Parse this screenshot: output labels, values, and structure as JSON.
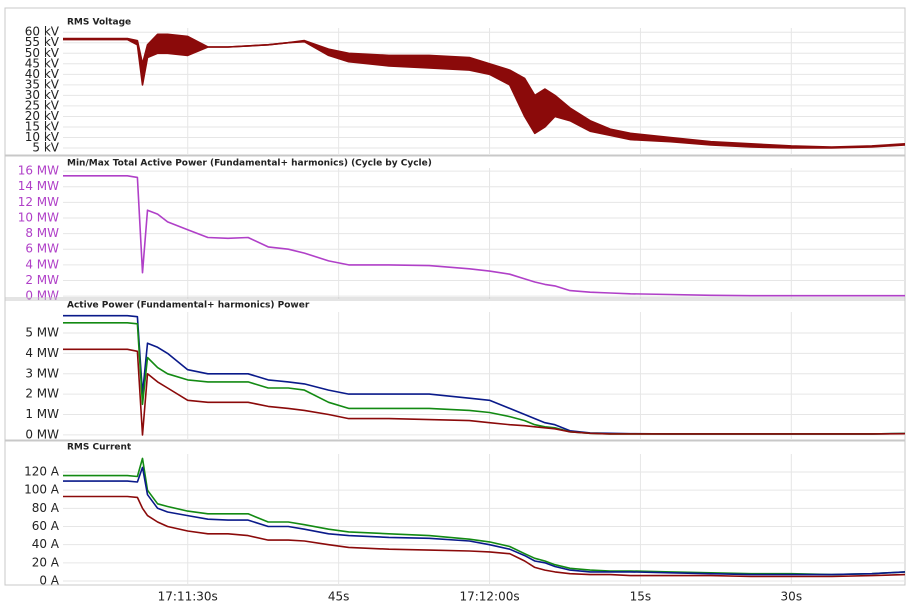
{
  "chart_data": [
    {
      "type": "line",
      "title": "RMS Voltage",
      "x": [
        17.6,
        20,
        24,
        25,
        25.5,
        26,
        27,
        28,
        30,
        32,
        34,
        36,
        38,
        40,
        41.6,
        44,
        46,
        50,
        54,
        58,
        60,
        62,
        63.5,
        64.5,
        65.5,
        66.5,
        68,
        70,
        72,
        74,
        78,
        82,
        86,
        90,
        94,
        98,
        101.3
      ],
      "xlim": [
        17.6,
        101.3
      ],
      "ylim": [
        1.7,
        62
      ],
      "tick_color": "#222222",
      "yticks": [
        {
          "value": 5,
          "label": "5 kV"
        },
        {
          "value": 10,
          "label": "10 kV"
        },
        {
          "value": 15,
          "label": "15 kV"
        },
        {
          "value": 20,
          "label": "20 kV"
        },
        {
          "value": 25,
          "label": "25 kV"
        },
        {
          "value": 30,
          "label": "30 kV"
        },
        {
          "value": 35,
          "label": "35 kV"
        },
        {
          "value": 40,
          "label": "40 kV"
        },
        {
          "value": 45,
          "label": "45 kV"
        },
        {
          "value": 50,
          "label": "50 kV"
        },
        {
          "value": 55,
          "label": "55 kV"
        },
        {
          "value": 60,
          "label": "60 kV"
        }
      ],
      "series": [
        {
          "color": "#8b0a0a",
          "values": [
            57,
            57,
            57,
            56,
            45,
            54,
            59,
            59,
            58,
            53,
            53,
            53.5,
            54,
            55,
            56,
            52,
            50,
            49,
            49,
            48,
            45,
            42,
            38,
            30,
            33,
            30,
            24,
            18,
            14,
            12,
            10,
            8,
            7,
            6,
            5.5,
            6,
            7
          ],
          "low": [
            56.5,
            56.5,
            56.5,
            54,
            35,
            48,
            50,
            50,
            49,
            53,
            53,
            53.5,
            54,
            55,
            55.5,
            49,
            46,
            44,
            43,
            42,
            40,
            35,
            20,
            12,
            15,
            20,
            18,
            13,
            11,
            9,
            8,
            6.5,
            5.5,
            5,
            5,
            5.5,
            6.5
          ]
        }
      ]
    },
    {
      "type": "line",
      "title": "Min/Max Total Active Power  (Fundamental+ harmonics) (Cycle by Cycle)",
      "x": [
        17.6,
        20,
        24,
        25,
        25.5,
        26,
        27,
        28,
        30,
        32,
        34,
        36,
        38,
        40,
        41.6,
        44,
        46,
        50,
        54,
        58,
        60,
        62,
        63.5,
        64.5,
        65.5,
        66.5,
        68,
        70,
        72,
        74,
        78,
        82,
        86,
        90,
        94,
        98,
        101.3
      ],
      "xlim": [
        17.6,
        101.3
      ],
      "ylim": [
        -0.5,
        16.4
      ],
      "tick_color": "#b040c8",
      "yticks": [
        {
          "value": 0,
          "label": "0 MW"
        },
        {
          "value": 2,
          "label": "2 MW"
        },
        {
          "value": 4,
          "label": "4 MW"
        },
        {
          "value": 6,
          "label": "6 MW"
        },
        {
          "value": 8,
          "label": "8 MW"
        },
        {
          "value": 10,
          "label": "10 MW"
        },
        {
          "value": 12,
          "label": "12 MW"
        },
        {
          "value": 14,
          "label": "14 MW"
        },
        {
          "value": 16,
          "label": "16 MW"
        }
      ],
      "series": [
        {
          "color": "#b040c8",
          "values": [
            15.4,
            15.4,
            15.4,
            15.2,
            3,
            11,
            10.5,
            9.5,
            8.5,
            7.5,
            7.4,
            7.5,
            6.3,
            6,
            5.5,
            4.5,
            4,
            4,
            3.9,
            3.5,
            3.2,
            2.8,
            2.2,
            1.8,
            1.5,
            1.3,
            0.7,
            0.5,
            0.4,
            0.3,
            0.2,
            0.1,
            0.05,
            0.05,
            0.05,
            0.05,
            0.05
          ]
        }
      ]
    },
    {
      "type": "line",
      "title": "Active Power  (Fundamental+ harmonics) Power",
      "x": [
        17.6,
        20,
        24,
        25,
        25.5,
        26,
        27,
        28,
        30,
        32,
        34,
        36,
        38,
        40,
        41.6,
        44,
        46,
        50,
        54,
        58,
        60,
        62,
        63.5,
        64.5,
        65.5,
        66.5,
        68,
        70,
        72,
        74,
        78,
        82,
        86,
        90,
        94,
        98,
        101.3
      ],
      "xlim": [
        17.6,
        101.3
      ],
      "ylim": [
        -0.25,
        6.03
      ],
      "tick_color": "#222222",
      "yticks": [
        {
          "value": 0,
          "label": "0 MW"
        },
        {
          "value": 1,
          "label": "1 MW"
        },
        {
          "value": 2,
          "label": "2 MW"
        },
        {
          "value": 3,
          "label": "3 MW"
        },
        {
          "value": 4,
          "label": "4 MW"
        },
        {
          "value": 5,
          "label": "5 MW"
        }
      ],
      "series": [
        {
          "color": "#0a1a8a",
          "values": [
            5.85,
            5.85,
            5.85,
            5.8,
            2,
            4.5,
            4.3,
            4,
            3.2,
            3.0,
            3.0,
            3.0,
            2.7,
            2.6,
            2.5,
            2.2,
            2.0,
            2.0,
            2.0,
            1.8,
            1.7,
            1.3,
            1.0,
            0.8,
            0.6,
            0.5,
            0.2,
            0.1,
            0.08,
            0.06,
            0.05,
            0.05,
            0.05,
            0.05,
            0.05,
            0.05,
            0.07
          ]
        },
        {
          "color": "#138a13",
          "values": [
            5.5,
            5.5,
            5.5,
            5.45,
            1.5,
            3.8,
            3.3,
            3.0,
            2.7,
            2.6,
            2.6,
            2.6,
            2.3,
            2.3,
            2.2,
            1.6,
            1.3,
            1.3,
            1.3,
            1.2,
            1.1,
            0.9,
            0.7,
            0.5,
            0.4,
            0.35,
            0.15,
            0.08,
            0.05,
            0.05,
            0.05,
            0.05,
            0.05,
            0.05,
            0.05,
            0.05,
            0.07
          ]
        },
        {
          "color": "#8b0a0a",
          "values": [
            4.2,
            4.2,
            4.2,
            4.1,
            0,
            3.0,
            2.6,
            2.3,
            1.7,
            1.6,
            1.6,
            1.6,
            1.4,
            1.3,
            1.2,
            1.0,
            0.8,
            0.8,
            0.75,
            0.7,
            0.6,
            0.5,
            0.45,
            0.4,
            0.35,
            0.3,
            0.15,
            0.08,
            0.05,
            0.05,
            0.05,
            0.05,
            0.05,
            0.05,
            0.05,
            0.05,
            0.06
          ]
        }
      ]
    },
    {
      "type": "line",
      "title": "RMS Current",
      "x": [
        17.6,
        20,
        24,
        25,
        25.5,
        26,
        27,
        28,
        30,
        32,
        34,
        36,
        38,
        40,
        41.6,
        44,
        46,
        50,
        54,
        58,
        60,
        62,
        63.5,
        64.5,
        65.5,
        66.5,
        68,
        70,
        72,
        74,
        78,
        82,
        86,
        90,
        94,
        98,
        101.3
      ],
      "xlim": [
        17.6,
        101.3
      ],
      "ylim": [
        -4.4,
        139.8
      ],
      "tick_color": "#222222",
      "yticks": [
        {
          "value": 0,
          "label": "0 A"
        },
        {
          "value": 20,
          "label": "20 A"
        },
        {
          "value": 40,
          "label": "40 A"
        },
        {
          "value": 60,
          "label": "60 A"
        },
        {
          "value": 80,
          "label": "80 A"
        },
        {
          "value": 100,
          "label": "100 A"
        },
        {
          "value": 120,
          "label": "120 A"
        }
      ],
      "xticks": [
        {
          "value": 30,
          "label": "17:11:30s"
        },
        {
          "value": 45,
          "label": "45s"
        },
        {
          "value": 60,
          "label": "17:12:00s"
        },
        {
          "value": 75,
          "label": "15s"
        },
        {
          "value": 90,
          "label": "30s"
        }
      ],
      "series": [
        {
          "color": "#138a13",
          "values": [
            116,
            116,
            116,
            115,
            135,
            100,
            85,
            82,
            77,
            74,
            74,
            74,
            65,
            65,
            62,
            57,
            54,
            52,
            50,
            46,
            43,
            38,
            30,
            25,
            22,
            18,
            14,
            12,
            11,
            11,
            10,
            9,
            8,
            8,
            7,
            8,
            10
          ]
        },
        {
          "color": "#0a1a8a",
          "values": [
            110,
            110,
            110,
            109,
            125,
            95,
            80,
            76,
            72,
            68,
            67,
            67,
            60,
            60,
            57,
            52,
            50,
            48,
            47,
            44,
            40,
            35,
            28,
            22,
            20,
            16,
            12,
            10,
            10,
            10,
            9,
            8,
            7,
            7,
            7,
            8,
            10
          ]
        },
        {
          "color": "#8b0a0a",
          "values": [
            93,
            93,
            93,
            92,
            80,
            72,
            65,
            60,
            55,
            52,
            52,
            50,
            45,
            45,
            44,
            40,
            37,
            35,
            34,
            33,
            32,
            30,
            22,
            15,
            12,
            10,
            8,
            7,
            7,
            6,
            6,
            6,
            5,
            5,
            5,
            6,
            7
          ]
        }
      ]
    }
  ]
}
